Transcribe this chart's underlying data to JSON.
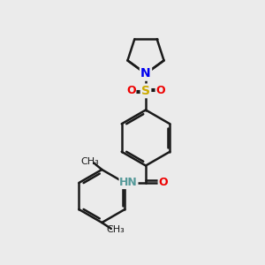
{
  "background_color": "#ebebeb",
  "bond_color": "#1a1a1a",
  "figsize": [
    3.0,
    3.0
  ],
  "dpi": 100,
  "atom_colors": {
    "N": "#0000ee",
    "O": "#ee0000",
    "S": "#ccaa00",
    "C": "#1a1a1a",
    "H": "#559999"
  },
  "xlim": [
    0,
    10
  ],
  "ylim": [
    0,
    10
  ]
}
